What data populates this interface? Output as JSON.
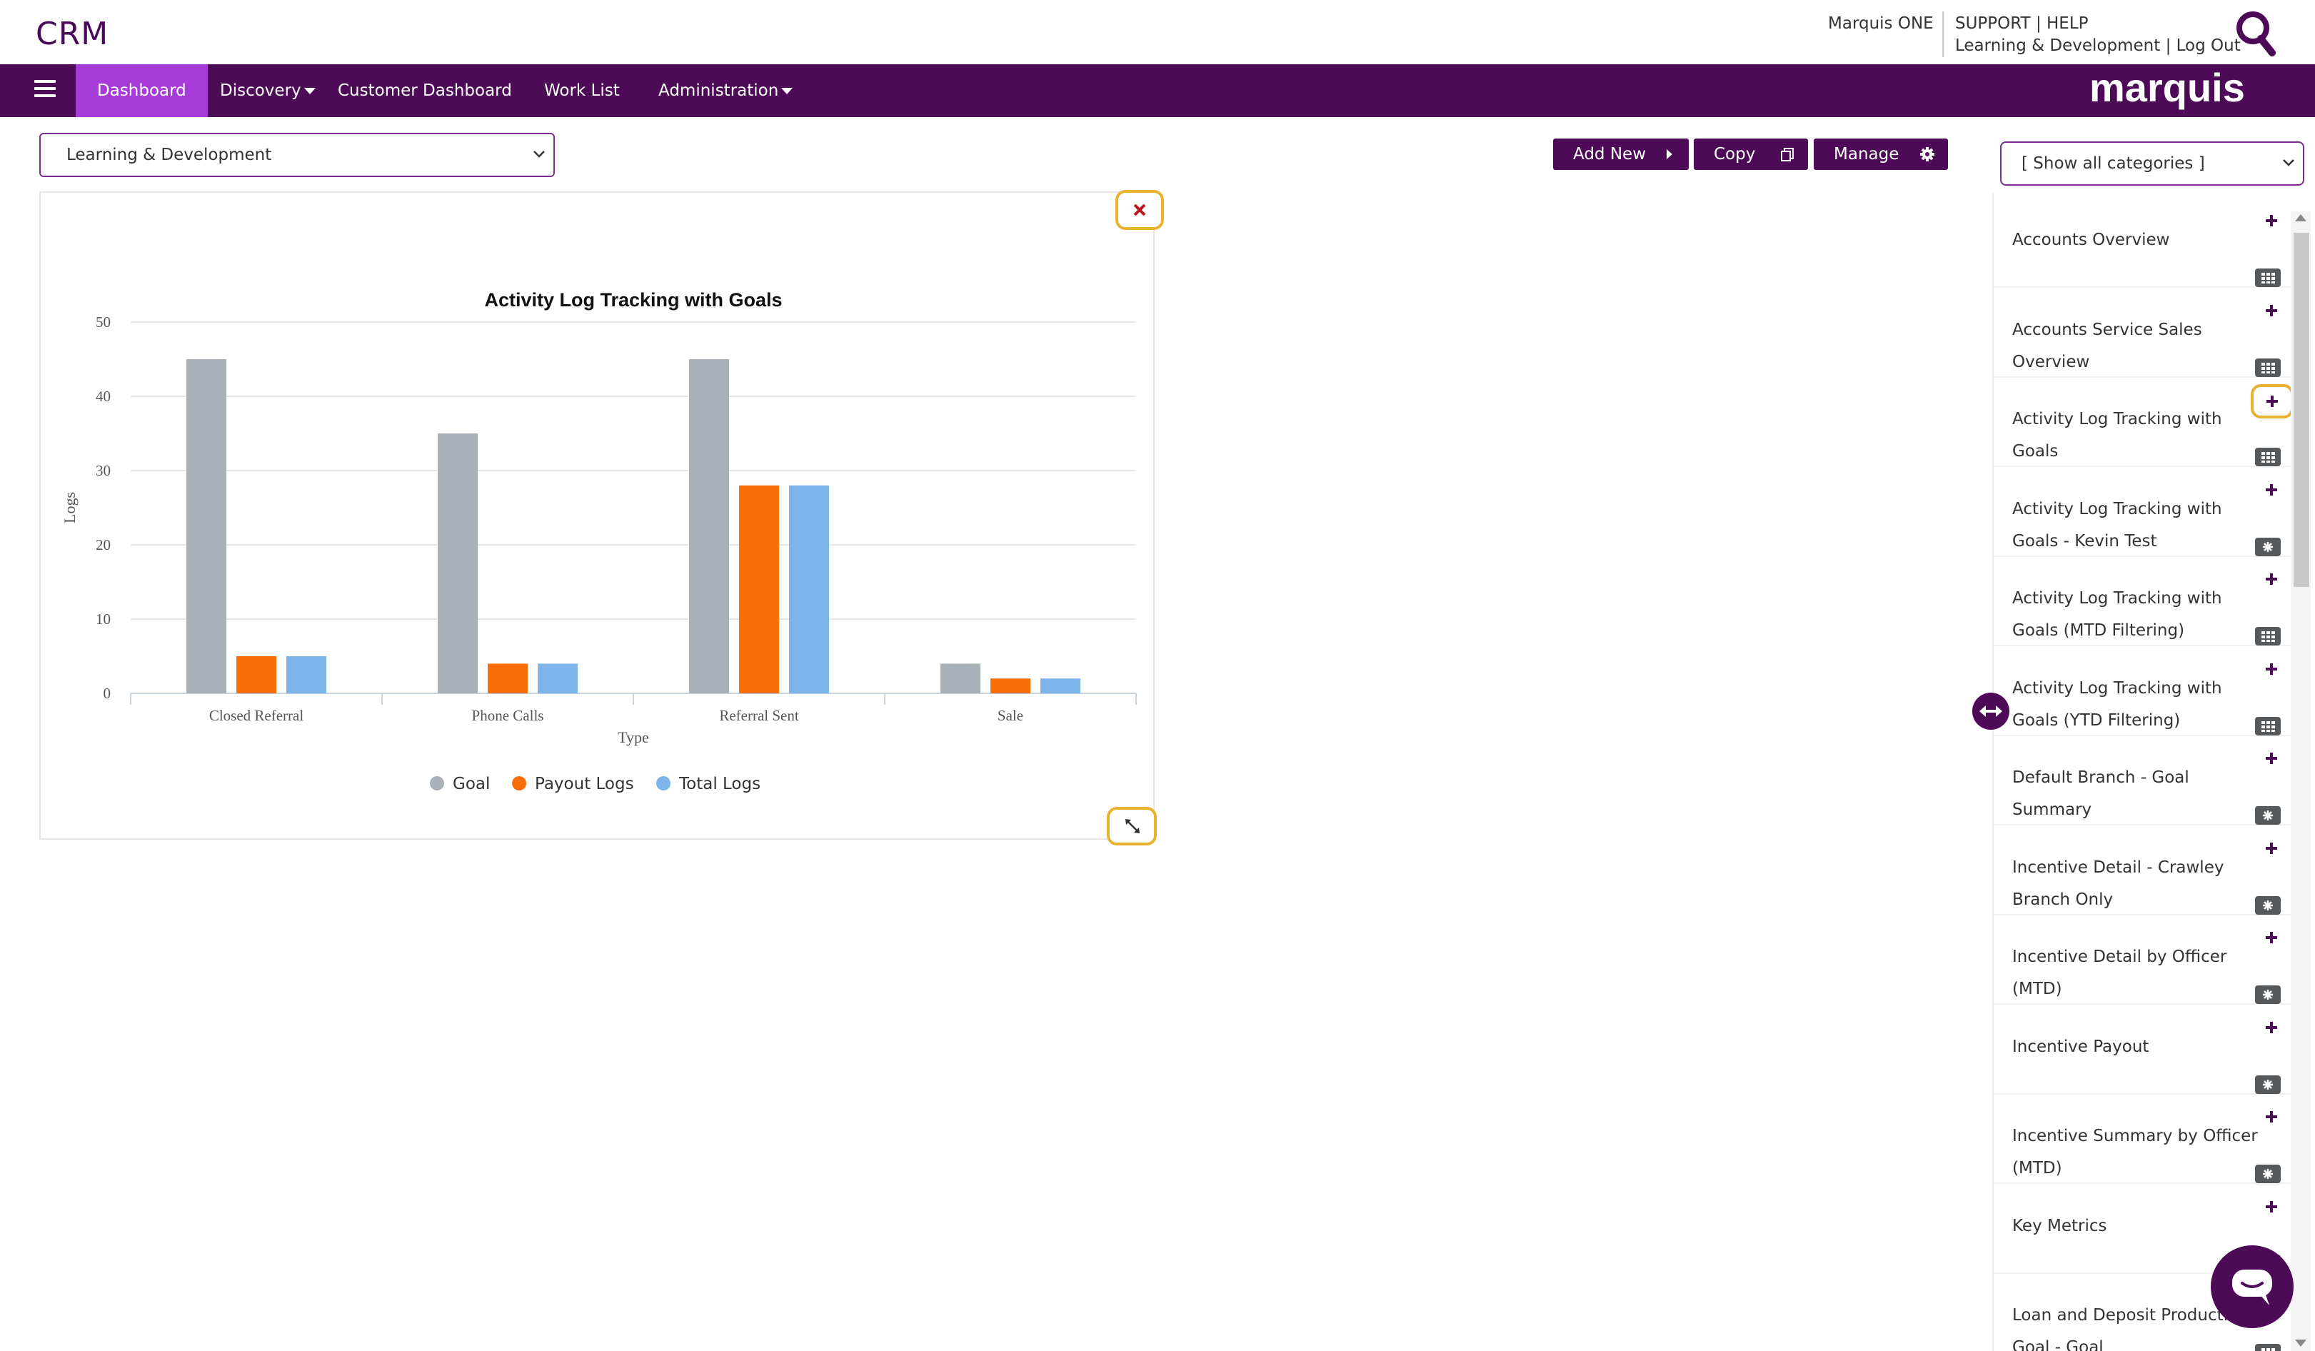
{
  "header": {
    "app_title": "CRM",
    "user_line": "Marquis ONE",
    "support_label": "SUPPORT",
    "help_label": "HELP",
    "link_separator": "|",
    "department_label": "Learning & Development",
    "logout_label": "Log Out"
  },
  "nav": {
    "items": [
      {
        "label": "Dashboard",
        "active": true
      },
      {
        "label": "Discovery",
        "dropdown": true
      },
      {
        "label": "Customer Dashboard"
      },
      {
        "label": "Work List"
      },
      {
        "label": "Administration",
        "dropdown": true
      }
    ],
    "brand": "marquis"
  },
  "toolbar": {
    "dashboard_select": "Learning & Development",
    "add_new_label": "Add New",
    "copy_label": "Copy",
    "manage_label": "Manage"
  },
  "chart_data": {
    "type": "bar",
    "title": "Activity Log Tracking with Goals",
    "xlabel": "Type",
    "ylabel": "Logs",
    "ylim": [
      0,
      50
    ],
    "yticks": [
      0,
      10,
      20,
      30,
      40,
      50
    ],
    "categories": [
      "Closed Referral",
      "Phone Calls",
      "Referral Sent",
      "Sale"
    ],
    "series": [
      {
        "name": "Goal",
        "color": "#a9b0b9",
        "values": [
          45,
          35,
          45,
          4
        ]
      },
      {
        "name": "Payout Logs",
        "color": "#fa6e0a",
        "values": [
          5,
          4,
          28,
          2
        ]
      },
      {
        "name": "Total Logs",
        "color": "#7cb4eb",
        "values": [
          5,
          4,
          28,
          2
        ]
      }
    ],
    "grid": true,
    "legend": "bottom-center"
  },
  "side_panel": {
    "category_select": "[ Show all categories ]",
    "items": [
      {
        "label": "Accounts Overview",
        "type": "table"
      },
      {
        "label": "Accounts Service Sales Overview",
        "type": "table"
      },
      {
        "label": "Activity Log Tracking with Goals",
        "type": "table"
      },
      {
        "label": "Activity Log Tracking with Goals - Kevin Test",
        "type": "chart"
      },
      {
        "label": "Activity Log Tracking with Goals (MTD Filtering)",
        "type": "table"
      },
      {
        "label": "Activity Log Tracking with Goals (YTD Filtering)",
        "type": "table"
      },
      {
        "label": "Default Branch - Goal Summary",
        "type": "chart"
      },
      {
        "label": "Incentive Detail - Crawley Branch Only",
        "type": "chart"
      },
      {
        "label": "Incentive Detail by Officer (MTD)",
        "type": "chart"
      },
      {
        "label": "Incentive Payout",
        "type": "chart"
      },
      {
        "label": "Incentive Summary by Officer (MTD)",
        "type": "chart"
      },
      {
        "label": "Key Metrics",
        "type": "chart"
      },
      {
        "label": "Loan and Deposit Production Goal - Goal",
        "type": "table"
      }
    ]
  },
  "colors": {
    "primary": "#4c0a57",
    "active_tab": "#a63bd7",
    "highlight": "#e8b22f",
    "close_red": "#c0141e"
  }
}
